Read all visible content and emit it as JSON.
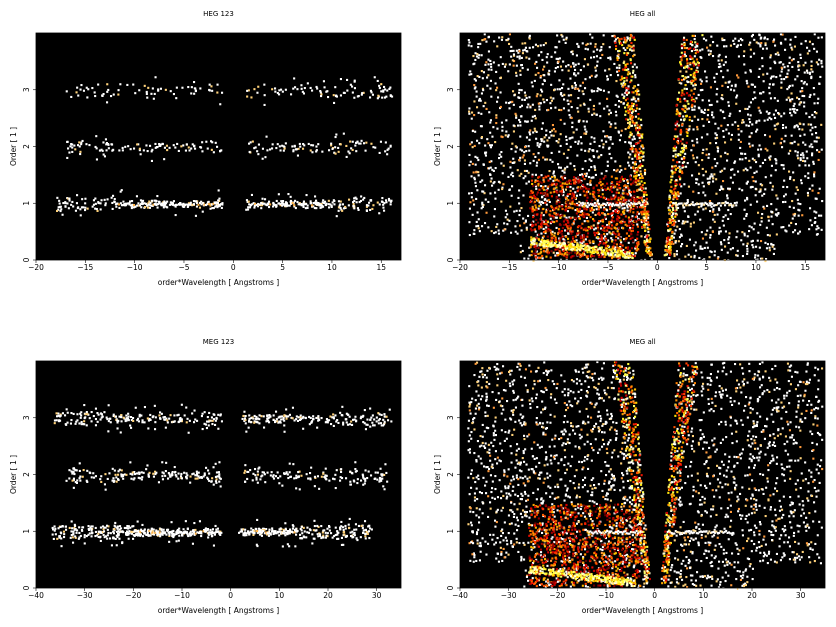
{
  "chart_data": [
    {
      "type": "heatmap",
      "title": "HEG 123",
      "xlabel": "order*Wavelength [ Angstroms ]",
      "ylabel": "Order [ 1 ]",
      "xlim": [
        -20,
        17
      ],
      "ylim": [
        0,
        4
      ],
      "xticks": [
        -20,
        -15,
        -10,
        -5,
        0,
        5,
        10,
        15
      ],
      "yticks": [
        0,
        1,
        2,
        3
      ],
      "mode": "orders",
      "gap": 1.2,
      "bands": [
        {
          "order": 1,
          "x_range": [
            -18,
            16
          ],
          "bright_range": [
            [
              -12,
              -1.2
            ],
            [
              1.5,
              10
            ]
          ],
          "density": 0.55
        },
        {
          "order": 2,
          "x_range": [
            -17,
            16
          ],
          "bright_range": [
            [
              -12,
              -2.5
            ],
            [
              2.5,
              10
            ]
          ],
          "density": 0.32
        },
        {
          "order": 3,
          "x_range": [
            -17,
            16
          ],
          "bright_range": [
            [
              -9,
              -3.5
            ],
            [
              3.5,
              9
            ]
          ],
          "density": 0.22
        }
      ]
    },
    {
      "type": "heatmap",
      "title": "HEG all",
      "xlabel": "order*Wavelength [ Angstroms ]",
      "ylabel": "Order [ 1 ]",
      "xlim": [
        -20,
        17
      ],
      "ylim": [
        0,
        4
      ],
      "xticks": [
        -20,
        -15,
        -10,
        -5,
        0,
        5,
        10,
        15
      ],
      "yticks": [
        0,
        1,
        2,
        3
      ],
      "mode": "all",
      "cone_slope": 0.22,
      "zero_gap": 0.6,
      "left_block": [
        -13,
        -2
      ],
      "line_range": [
        -8,
        8
      ]
    },
    {
      "type": "heatmap",
      "title": "MEG 123",
      "xlabel": "order*Wavelength [ Angstroms ]",
      "ylabel": "Order [ 1 ]",
      "xlim": [
        -40,
        35
      ],
      "ylim": [
        0,
        4
      ],
      "xticks": [
        -40,
        -30,
        -20,
        -10,
        0,
        10,
        20,
        30
      ],
      "yticks": [
        0,
        1,
        2,
        3
      ],
      "mode": "orders",
      "gap": 2.0,
      "bands": [
        {
          "order": 1,
          "x_range": [
            -37,
            29
          ],
          "bright_range": [
            [
              -20,
              -2
            ],
            [
              1.5,
              14
            ]
          ],
          "density": 0.45
        },
        {
          "order": 2,
          "x_range": [
            -34,
            32
          ],
          "bright_range": [
            [
              -22,
              -5
            ],
            [
              5,
              20
            ]
          ],
          "density": 0.22
        },
        {
          "order": 3,
          "x_range": [
            -37,
            33
          ],
          "bright_range": [
            [
              -24,
              -6
            ],
            [
              1.5,
              20
            ]
          ],
          "density": 0.26
        }
      ]
    },
    {
      "type": "heatmap",
      "title": "MEG all",
      "xlabel": "order*Wavelength [ Angstroms ]",
      "ylabel": "Order [ 1 ]",
      "xlim": [
        -40,
        35
      ],
      "ylim": [
        0,
        4
      ],
      "xticks": [
        -40,
        -30,
        -20,
        -10,
        0,
        10,
        20,
        30
      ],
      "yticks": [
        0,
        1,
        2,
        3
      ],
      "mode": "all",
      "cone_slope": 0.11,
      "zero_gap": 1.0,
      "left_block": [
        -26,
        -3
      ],
      "line_range": [
        -14,
        16
      ]
    }
  ]
}
